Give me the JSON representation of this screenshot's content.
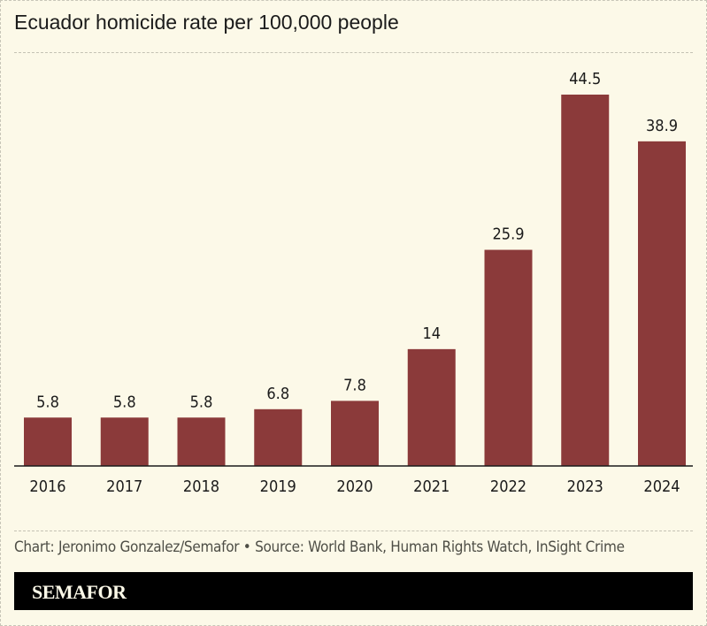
{
  "title": "Ecuador homicide rate per 100,000 people",
  "source": "Chart: Jeronimo Gonzalez/Semafor • Source: World Bank, Human Rights Watch, InSight Crime",
  "logo": "SEMAFOR",
  "colors": {
    "bar": "#8b3a3a",
    "background": "#fcf9e8",
    "logo_bar": "#000000"
  },
  "chart_data": {
    "type": "bar",
    "title": "Ecuador homicide rate per 100,000 people",
    "categories": [
      "2016",
      "2017",
      "2018",
      "2019",
      "2020",
      "2021",
      "2022",
      "2023",
      "2024"
    ],
    "values": [
      5.8,
      5.8,
      5.8,
      6.8,
      7.8,
      14,
      25.9,
      44.5,
      38.9
    ],
    "labels": [
      "5.8",
      "5.8",
      "5.8",
      "6.8",
      "7.8",
      "14",
      "25.9",
      "44.5",
      "38.9"
    ],
    "xlabel": "",
    "ylabel": "",
    "ylim": [
      0,
      44.5
    ],
    "grid": false,
    "data_labels": true
  }
}
